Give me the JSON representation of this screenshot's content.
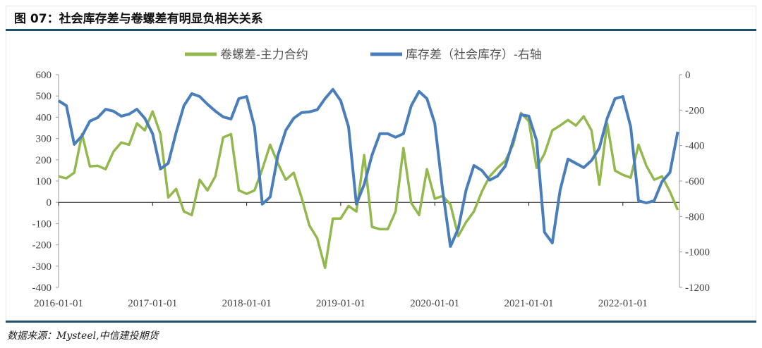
{
  "title": "图 07：社会库存差与卷螺差有明显负相关关系",
  "source": "数据来源：Mysteel,中信建投期货",
  "chart_data": {
    "type": "line",
    "title": "图 07：社会库存差与卷螺差有明显负相关关系",
    "legend_position": "top",
    "grid": false,
    "x_tick_labels": [
      "2016-01-01",
      "2017-01-01",
      "2018-01-01",
      "2019-01-01",
      "2020-01-01",
      "2021-01-01",
      "2022-01-01"
    ],
    "y_left": {
      "range": [
        -400,
        600
      ],
      "ticks": [
        "600",
        "500",
        "400",
        "300",
        "200",
        "100",
        "0",
        "-100",
        "-200",
        "-300",
        "-400"
      ]
    },
    "y_right": {
      "range": [
        -1200,
        0
      ],
      "ticks": [
        "0",
        "-200",
        "-400",
        "-600",
        "-800",
        "-1000",
        "-1200"
      ]
    },
    "x": [
      "2016-01",
      "2016-02",
      "2016-03",
      "2016-04",
      "2016-05",
      "2016-06",
      "2016-07",
      "2016-08",
      "2016-09",
      "2016-10",
      "2016-11",
      "2016-12",
      "2017-01",
      "2017-02",
      "2017-03",
      "2017-04",
      "2017-05",
      "2017-06",
      "2017-07",
      "2017-08",
      "2017-09",
      "2017-10",
      "2017-11",
      "2017-12",
      "2018-01",
      "2018-02",
      "2018-03",
      "2018-04",
      "2018-05",
      "2018-06",
      "2018-07",
      "2018-08",
      "2018-09",
      "2018-10",
      "2018-11",
      "2018-12",
      "2019-01",
      "2019-02",
      "2019-03",
      "2019-04",
      "2019-05",
      "2019-06",
      "2019-07",
      "2019-08",
      "2019-09",
      "2019-10",
      "2019-11",
      "2019-12",
      "2020-01",
      "2020-02",
      "2020-03",
      "2020-04",
      "2020-05",
      "2020-06",
      "2020-07",
      "2020-08",
      "2020-09",
      "2020-10",
      "2020-11",
      "2020-12",
      "2021-01",
      "2021-02",
      "2021-03",
      "2021-04",
      "2021-05",
      "2021-06",
      "2021-07",
      "2021-08",
      "2021-09",
      "2021-10",
      "2021-11",
      "2021-12",
      "2022-01",
      "2022-02",
      "2022-03",
      "2022-04",
      "2022-05",
      "2022-06",
      "2022-07",
      "2022-08"
    ],
    "series": [
      {
        "name": "卷螺差-主力合约",
        "axis": "left",
        "color": "#92b84e",
        "values": [
          122,
          113,
          139,
          321,
          169,
          172,
          156,
          238,
          281,
          271,
          371,
          338,
          427,
          321,
          23,
          63,
          -43,
          -60,
          106,
          56,
          122,
          305,
          321,
          56,
          40,
          56,
          156,
          271,
          182,
          106,
          139,
          23,
          -109,
          -169,
          -308,
          -76,
          -76,
          -17,
          -43,
          222,
          -116,
          -126,
          -126,
          -43,
          255,
          -3,
          -60,
          156,
          17,
          30,
          -10,
          -159,
          -93,
          -43,
          50,
          122,
          162,
          195,
          271,
          420,
          381,
          162,
          228,
          338,
          361,
          387,
          361,
          404,
          338,
          83,
          371,
          149,
          129,
          116,
          271,
          172,
          106,
          122,
          50,
          -36
        ]
      },
      {
        "name": "库存差（社会库存）-右轴",
        "axis": "right",
        "color": "#4a7ebb",
        "values": [
          -147,
          -175,
          -393,
          -345,
          -262,
          -242,
          -195,
          -206,
          -234,
          -222,
          -195,
          -246,
          -333,
          -532,
          -500,
          -326,
          -175,
          -107,
          -123,
          -167,
          -206,
          -238,
          -250,
          -135,
          -123,
          -294,
          -730,
          -690,
          -453,
          -314,
          -246,
          -214,
          -210,
          -198,
          -135,
          -83,
          -147,
          -294,
          -730,
          -619,
          -453,
          -333,
          -333,
          -353,
          -333,
          -175,
          -95,
          -135,
          -274,
          -651,
          -969,
          -869,
          -651,
          -512,
          -540,
          -595,
          -572,
          -516,
          -373,
          -226,
          -234,
          -373,
          -889,
          -949,
          -651,
          -476,
          -500,
          -524,
          -484,
          -413,
          -246,
          -135,
          -123,
          -294,
          -711,
          -723,
          -711,
          -603,
          -552,
          -322
        ]
      }
    ]
  }
}
